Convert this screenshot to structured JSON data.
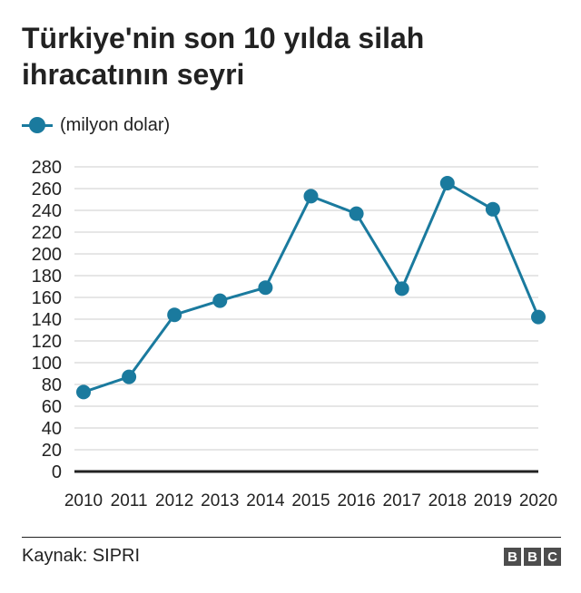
{
  "title": "Türkiye'nin son 10 yılda silah ihracatının seyri",
  "source": "Kaynak: SIPRI",
  "logo_letters": [
    "B",
    "B",
    "C"
  ],
  "colors": {
    "series": "#1a7a9e",
    "grid": "#cccccc",
    "axis": "#222222",
    "text": "#222222"
  },
  "chart_data": {
    "type": "line",
    "title": "Türkiye'nin son 10 yılda silah ihracatının seyri",
    "xlabel": "",
    "ylabel": "",
    "x": [
      "2010",
      "2011",
      "2012",
      "2013",
      "2014",
      "2015",
      "2016",
      "2017",
      "2018",
      "2019",
      "2020"
    ],
    "series": [
      {
        "name": "(milyon dolar)",
        "values": [
          73,
          87,
          144,
          157,
          169,
          253,
          237,
          168,
          265,
          241,
          142
        ]
      }
    ],
    "ylim": [
      0,
      280
    ],
    "yticks": [
      0,
      20,
      40,
      60,
      80,
      100,
      120,
      140,
      160,
      180,
      200,
      220,
      240,
      260,
      280
    ],
    "grid": true,
    "legend": "top-left"
  }
}
